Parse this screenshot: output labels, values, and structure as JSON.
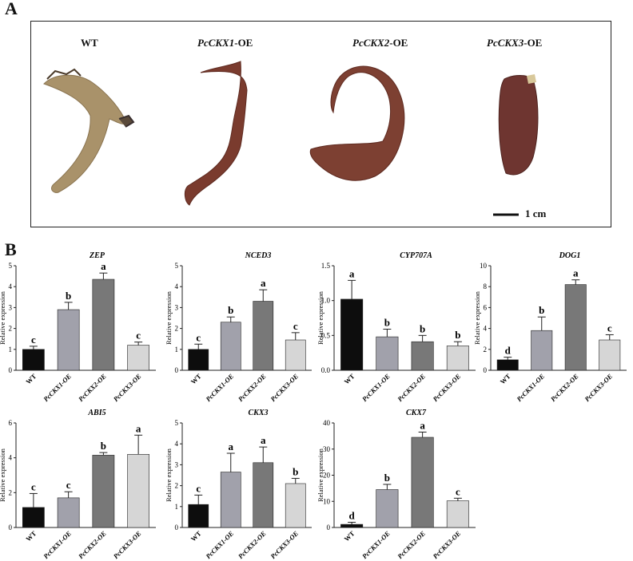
{
  "panel_a": {
    "label": "A",
    "scale_bar_label": "1 cm",
    "specimens": [
      {
        "prefix": "",
        "name": "WT",
        "suffix": ""
      },
      {
        "prefix": "",
        "name": "PcCKX1",
        "suffix": "-OE"
      },
      {
        "prefix": "",
        "name": "PcCKX2",
        "suffix": "-OE"
      },
      {
        "prefix": "",
        "name": "PcCKX3",
        "suffix": "-OE"
      }
    ],
    "colors": {
      "wt_tuber": "#a9926a",
      "oe_tuber": "#7a3b2e"
    }
  },
  "panel_b": {
    "label": "B"
  },
  "chart_data": [
    {
      "type": "bar",
      "title": "ZEP",
      "ylabel": "Relative expression",
      "ylim": [
        0,
        5
      ],
      "yticks": [
        "0",
        "1",
        "2",
        "3",
        "4",
        "5"
      ],
      "categories": [
        "WT",
        "PcCKX1-OE",
        "PcCKX2-OE",
        "PcCKX3-OE"
      ],
      "values": [
        1.0,
        2.9,
        4.35,
        1.2
      ],
      "errors": [
        0.15,
        0.35,
        0.3,
        0.15
      ],
      "letters": [
        "c",
        "b",
        "a",
        "c"
      ]
    },
    {
      "type": "bar",
      "title": "NCED3",
      "ylabel": "Relative expression",
      "ylim": [
        0,
        5
      ],
      "yticks": [
        "0",
        "1",
        "2",
        "3",
        "4",
        "5"
      ],
      "categories": [
        "WT",
        "PcCKX1-OE",
        "PcCKX2-OE",
        "PcCKX3-OE"
      ],
      "values": [
        1.0,
        2.3,
        3.3,
        1.45
      ],
      "errors": [
        0.25,
        0.25,
        0.55,
        0.35
      ],
      "letters": [
        "c",
        "b",
        "a",
        "c"
      ]
    },
    {
      "type": "bar",
      "title": "CYP707A",
      "ylabel": "Relative expression",
      "ylim": [
        0,
        1.5
      ],
      "yticks": [
        "0.0",
        "0.5",
        "1.0",
        "1.5"
      ],
      "categories": [
        "WT",
        "PcCKX1-OE",
        "PcCKX2-OE",
        "PcCKX3-OE"
      ],
      "values": [
        1.02,
        0.48,
        0.41,
        0.35
      ],
      "errors": [
        0.27,
        0.11,
        0.09,
        0.06
      ],
      "letters": [
        "a",
        "b",
        "b",
        "b"
      ]
    },
    {
      "type": "bar",
      "title": "DOG1",
      "ylabel": "Relative expression",
      "ylim": [
        0,
        10
      ],
      "yticks": [
        "0",
        "2",
        "4",
        "6",
        "8",
        "10"
      ],
      "categories": [
        "WT",
        "PcCKX1-OE",
        "PcCKX2-OE",
        "PcCKX3-OE"
      ],
      "values": [
        1.0,
        3.8,
        8.2,
        2.9
      ],
      "errors": [
        0.25,
        1.3,
        0.45,
        0.5
      ],
      "letters": [
        "d",
        "b",
        "a",
        "c"
      ]
    },
    {
      "type": "bar",
      "title": "ABI5",
      "ylabel": "Relative expression",
      "ylim": [
        0,
        6
      ],
      "yticks": [
        "0",
        "2",
        "4",
        "6"
      ],
      "categories": [
        "WT",
        "PcCKX1-OE",
        "PcCKX2-OE",
        "PcCKX3-OE"
      ],
      "values": [
        1.15,
        1.7,
        4.15,
        4.2
      ],
      "errors": [
        0.8,
        0.35,
        0.15,
        1.1
      ],
      "letters": [
        "c",
        "c",
        "b",
        "a"
      ]
    },
    {
      "type": "bar",
      "title": "CKX3",
      "ylabel": "Relative expression",
      "ylim": [
        0,
        5
      ],
      "yticks": [
        "0",
        "1",
        "2",
        "3",
        "4",
        "5"
      ],
      "categories": [
        "WT",
        "PcCKX1-OE",
        "PcCKX2-OE",
        "PcCKX3-OE"
      ],
      "values": [
        1.1,
        2.65,
        3.1,
        2.1
      ],
      "errors": [
        0.45,
        0.9,
        0.75,
        0.25
      ],
      "letters": [
        "c",
        "a",
        "a",
        "b"
      ]
    },
    {
      "type": "bar",
      "title": "CKX7",
      "ylabel": "Relative expression",
      "ylim": [
        0,
        40
      ],
      "yticks": [
        "0",
        "10",
        "20",
        "30",
        "40"
      ],
      "categories": [
        "WT",
        "PcCKX1-OE",
        "PcCKX2-OE",
        "PcCKX3-OE"
      ],
      "values": [
        1.2,
        14.5,
        34.5,
        10.2
      ],
      "errors": [
        0.8,
        2.0,
        2.0,
        1.0
      ],
      "letters": [
        "d",
        "b",
        "a",
        "c"
      ]
    }
  ],
  "bar_colors": [
    "#0d0d0d",
    "#a1a1ab",
    "#787878",
    "#d6d6d6"
  ]
}
